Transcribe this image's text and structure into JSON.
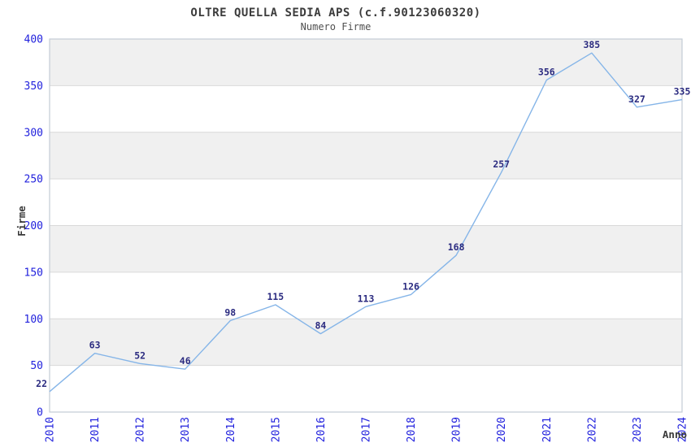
{
  "chart_data": {
    "type": "line",
    "title": "OLTRE QUELLA SEDIA APS (c.f.90123060320)",
    "subtitle": "Numero Firme",
    "xlabel": "Anno",
    "ylabel": "Firme",
    "categories": [
      "2010",
      "2011",
      "2012",
      "2013",
      "2014",
      "2015",
      "2016",
      "2017",
      "2018",
      "2019",
      "2020",
      "2021",
      "2022",
      "2023",
      "2024"
    ],
    "values": [
      22,
      63,
      52,
      46,
      98,
      115,
      84,
      113,
      126,
      168,
      257,
      356,
      385,
      327,
      335
    ],
    "ylim": [
      0,
      400
    ],
    "ytick_step": 50,
    "yticks": [
      0,
      50,
      100,
      150,
      200,
      250,
      300,
      350,
      400
    ],
    "grid": "horizontal-bands",
    "legend": "none",
    "colors": {
      "line": "#85b5e8",
      "band": "#f0f0f0",
      "gridline": "#d9d9d9",
      "plot_border": "#c3ccd6",
      "tick_label": "#2222dd",
      "value_label": "#2b2b80",
      "axis_title": "#3a3a3a",
      "title": "#3c3c3c",
      "subtitle": "#4f4f4f"
    }
  }
}
